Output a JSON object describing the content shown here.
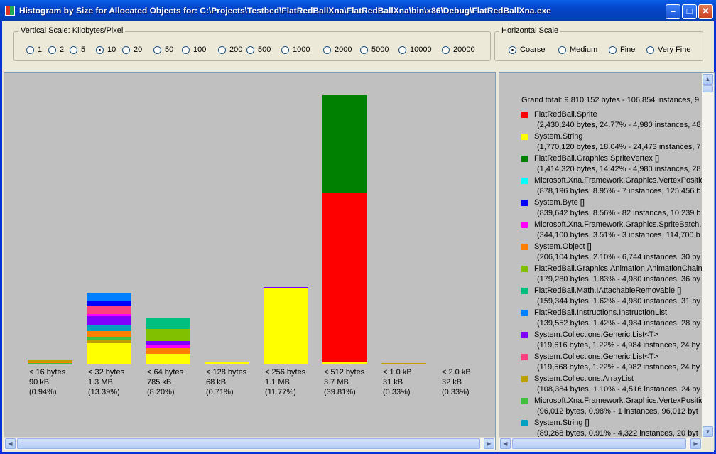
{
  "window": {
    "title": "Histogram by Size for Allocated Objects for: C:\\Projects\\Testbed\\FlatRedBallXna\\FlatRedBallXna\\bin\\x86\\Debug\\FlatRedBallXna.exe"
  },
  "vertical_scale": {
    "label": "Vertical Scale: Kilobytes/Pixel",
    "options": [
      "1",
      "2",
      "5",
      "10",
      "20",
      "50",
      "100",
      "200",
      "500",
      "1000",
      "2000",
      "5000",
      "10000",
      "20000"
    ],
    "selected": "10"
  },
  "horizontal_scale": {
    "label": "Horizontal Scale",
    "options": [
      "Coarse",
      "Medium",
      "Fine",
      "Very Fine"
    ],
    "selected": "Coarse"
  },
  "colors": {
    "background": "#c0c0c0",
    "red": "#ff0000",
    "yellow": "#ffff00",
    "green": "#008000",
    "cyan": "#00ffff",
    "blue": "#0000ff",
    "magenta": "#ff00ff",
    "orange": "#ff8000",
    "lime": "#80c000",
    "teal": "#00c080",
    "skyblue": "#0080ff",
    "violet": "#8000ff",
    "pink": "#ff4080",
    "olive": "#c0a000",
    "lightgreen": "#40c040",
    "steel": "#00a0c0"
  },
  "chart_data": {
    "type": "bar",
    "stacked": true,
    "y_unit": "kB",
    "scale_kb_per_pixel": 10,
    "categories": [
      "< 16 bytes",
      "< 32 bytes",
      "< 64 bytes",
      "< 128 bytes",
      "< 256 bytes",
      "< 512 bytes",
      "< 1.0 kB",
      "< 2.0 kB"
    ],
    "sizes": [
      "90 kB",
      "1.3 MB",
      "785 kB",
      "68 kB",
      "1.1 MB",
      "3.7 MB",
      "31 kB",
      "32 kB"
    ],
    "percents": [
      "(0.94%)",
      "(13.39%)",
      "(8.20%)",
      "(0.71%)",
      "(11.77%)",
      "(39.81%)",
      "(0.33%)",
      "(0.33%)"
    ],
    "stacks": [
      [
        {
          "color": "#40c040",
          "kb": 20
        },
        {
          "color": "#ff8000",
          "kb": 20
        },
        {
          "color": "#c0a000",
          "kb": 20
        }
      ],
      [
        {
          "color": "#ffff00",
          "kb": 300
        },
        {
          "color": "#c0a000",
          "kb": 40
        },
        {
          "color": "#40c040",
          "kb": 50
        },
        {
          "color": "#ff8000",
          "kb": 80
        },
        {
          "color": "#00a0c0",
          "kb": 90
        },
        {
          "color": "#8000ff",
          "kb": 120
        },
        {
          "color": "#ff00ff",
          "kb": 30
        },
        {
          "color": "#ff4080",
          "kb": 110
        },
        {
          "color": "#0000ff",
          "kb": 70
        },
        {
          "color": "#0080ff",
          "kb": 120
        }
      ],
      [
        {
          "color": "#ffff00",
          "kb": 150
        },
        {
          "color": "#ff8000",
          "kb": 80
        },
        {
          "color": "#ff00ff",
          "kb": 50
        },
        {
          "color": "#8000ff",
          "kb": 50
        },
        {
          "color": "#80c000",
          "kb": 170
        },
        {
          "color": "#00c080",
          "kb": 150
        }
      ],
      [
        {
          "color": "#ffff00",
          "kb": 30
        },
        {
          "color": "#c0a000",
          "kb": 10
        }
      ],
      [
        {
          "color": "#ffff00",
          "kb": 1080
        },
        {
          "color": "#8000ff",
          "kb": 10
        }
      ],
      [
        {
          "color": "#ffff00",
          "kb": 30
        },
        {
          "color": "#ff0000",
          "kb": 2380
        },
        {
          "color": "#008000",
          "kb": 1380
        }
      ],
      [
        {
          "color": "#ffff00",
          "kb": 10
        },
        {
          "color": "#c0a000",
          "kb": 10
        }
      ],
      []
    ]
  },
  "legend": {
    "grand_total": "Grand total: 9,810,152 bytes - 106,854 instances, 9",
    "items": [
      {
        "name": "FlatRedBall.Sprite",
        "detail": "(2,430,240 bytes, 24.77% - 4,980 instances, 48",
        "color": "#ff0000"
      },
      {
        "name": "System.String",
        "detail": "(1,770,120 bytes, 18.04% - 24,473 instances, 7",
        "color": "#ffff00"
      },
      {
        "name": "FlatRedBall.Graphics.SpriteVertex []",
        "detail": "(1,414,320 bytes, 14.42% - 4,980 instances, 28",
        "color": "#008000"
      },
      {
        "name": "Microsoft.Xna.Framework.Graphics.VertexPositio",
        "detail": "(878,196 bytes, 8.95% - 7 instances, 125,456 b",
        "color": "#00ffff"
      },
      {
        "name": "System.Byte []",
        "detail": "(839,642 bytes, 8.56% - 82 instances, 10,239 b",
        "color": "#0000ff"
      },
      {
        "name": "Microsoft.Xna.Framework.Graphics.SpriteBatch.S",
        "detail": "(344,100 bytes, 3.51% - 3 instances, 114,700 b",
        "color": "#ff00ff"
      },
      {
        "name": "System.Object []",
        "detail": "(206,104 bytes, 2.10% - 6,744 instances, 30 by",
        "color": "#ff8000"
      },
      {
        "name": "FlatRedBall.Graphics.Animation.AnimationChainLis",
        "detail": "(179,280 bytes, 1.83% - 4,980 instances, 36 by",
        "color": "#80c000"
      },
      {
        "name": "FlatRedBall.Math.IAttachableRemovable []",
        "detail": "(159,344 bytes, 1.62% - 4,980 instances, 31 by",
        "color": "#00c080"
      },
      {
        "name": "FlatRedBall.Instructions.InstructionList",
        "detail": "(139,552 bytes, 1.42% - 4,984 instances, 28 by",
        "color": "#0080ff"
      },
      {
        "name": "System.Collections.Generic.List<T>",
        "detail": "(119,616 bytes, 1.22% - 4,984 instances, 24 by",
        "color": "#8000ff"
      },
      {
        "name": "System.Collections.Generic.List<T>",
        "detail": "(119,568 bytes, 1.22% - 4,982 instances, 24 by",
        "color": "#ff4080"
      },
      {
        "name": "System.Collections.ArrayList",
        "detail": "(108,384 bytes, 1.10% - 4,516 instances, 24 by",
        "color": "#c0a000"
      },
      {
        "name": "Microsoft.Xna.Framework.Graphics.VertexPositio",
        "detail": "(96,012 bytes, 0.98% - 1 instances, 96,012 byt",
        "color": "#40c040"
      },
      {
        "name": "System.String []",
        "detail": "(89,268 bytes, 0.91% - 4,322 instances, 20 byt",
        "color": "#00a0c0"
      }
    ]
  }
}
